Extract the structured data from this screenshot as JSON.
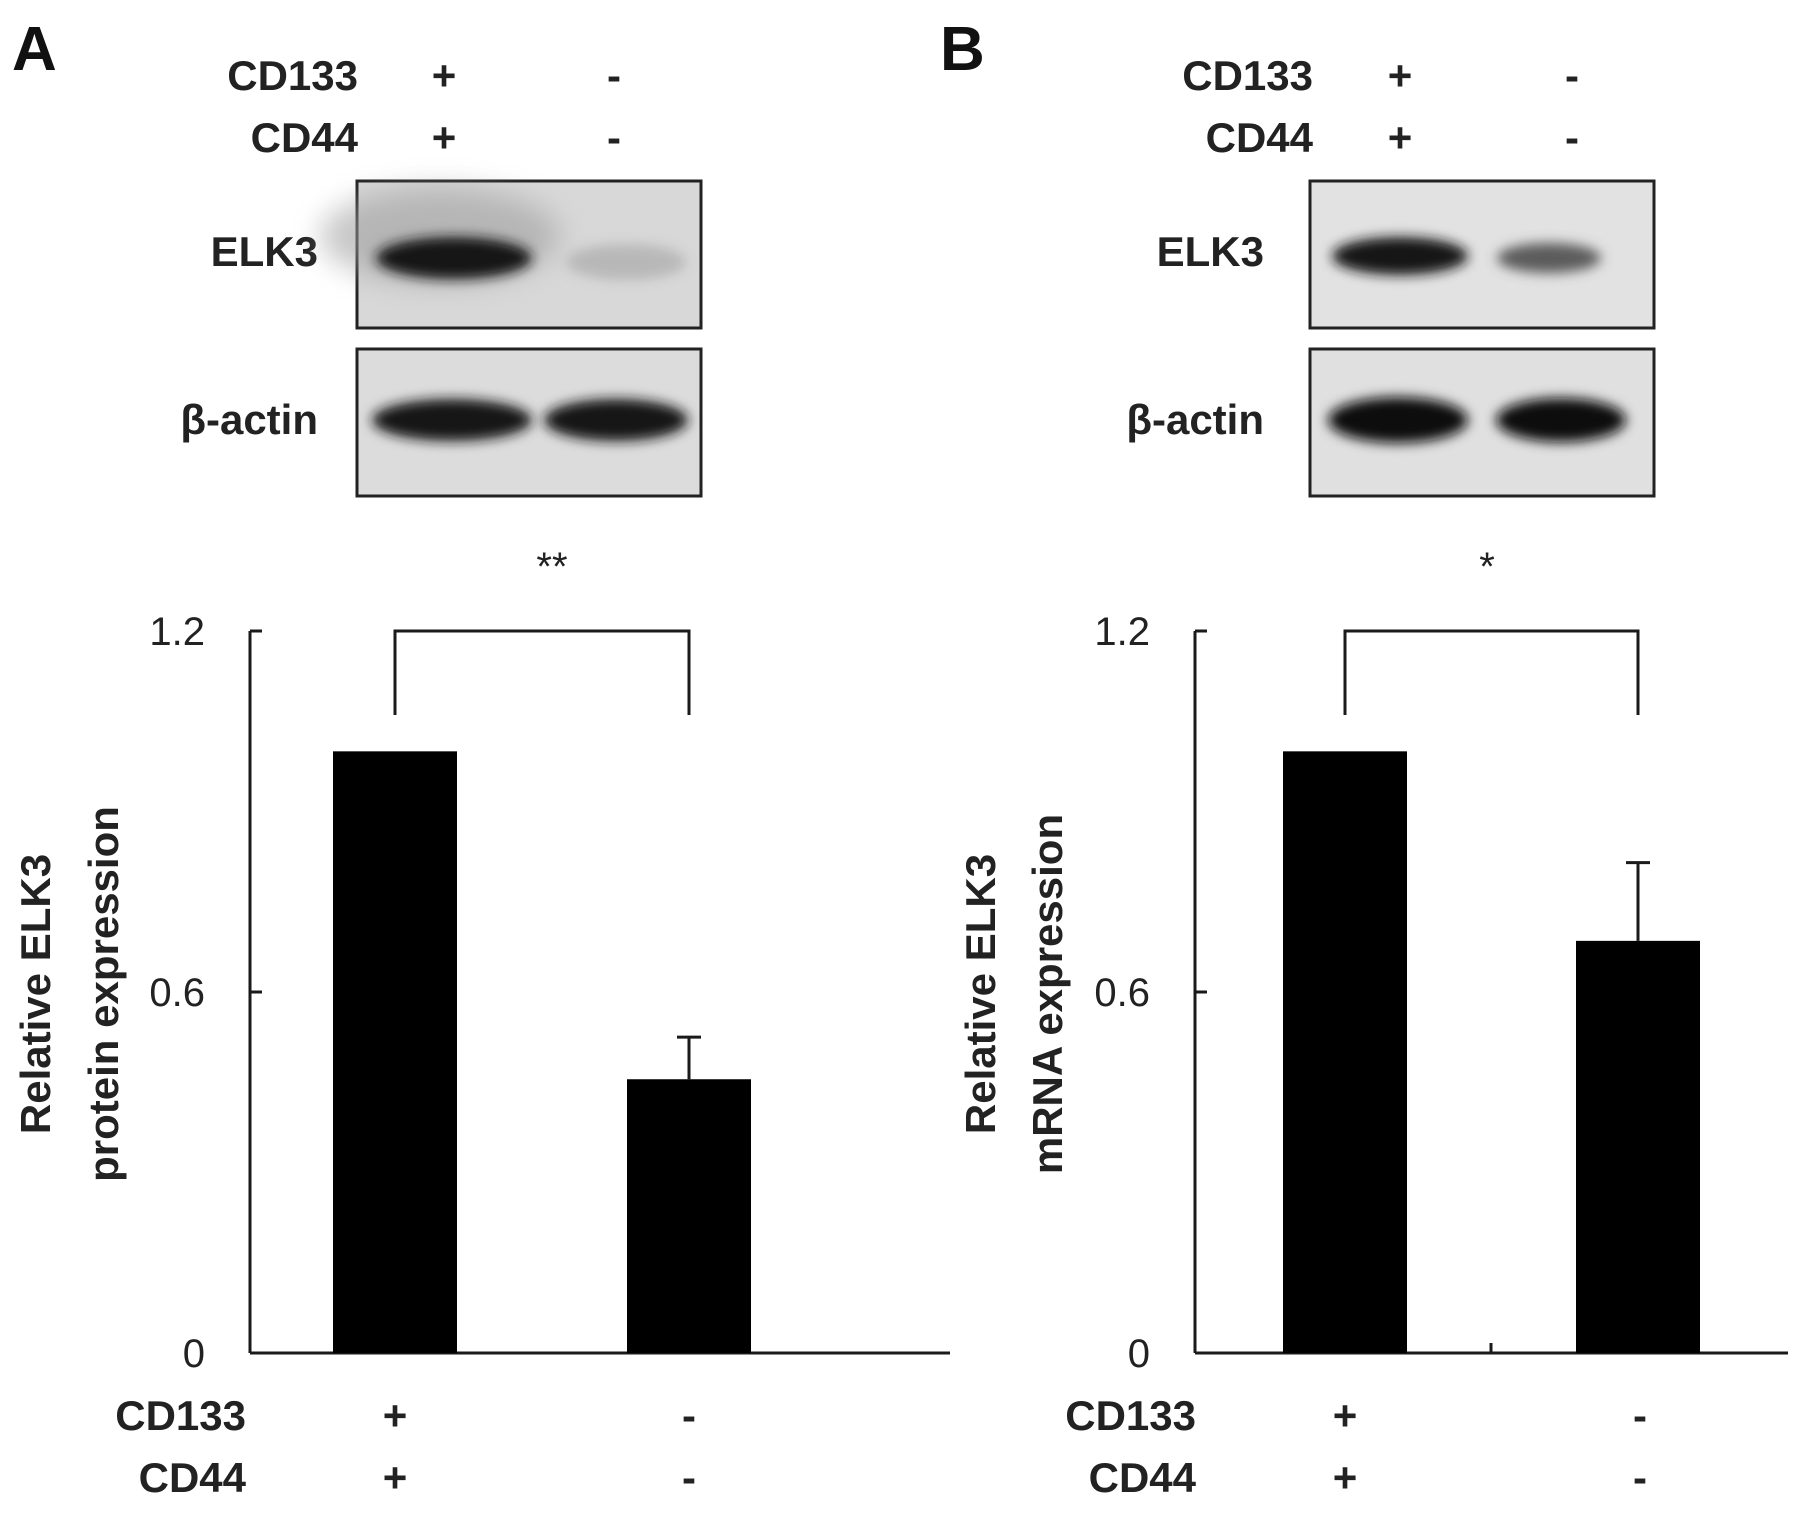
{
  "panels": [
    {
      "letter": "A",
      "blot": {
        "header_rows": [
          {
            "label": "CD133",
            "values": [
              "+",
              "-"
            ]
          },
          {
            "label": "CD44",
            "values": [
              "+",
              "-"
            ]
          }
        ],
        "rows": [
          {
            "label": "ELK3",
            "band_intensity": [
              1.0,
              0.18
            ]
          },
          {
            "label": "β-actin",
            "band_intensity": [
              1.0,
              1.0
            ]
          }
        ]
      },
      "significance": "**"
    },
    {
      "letter": "B",
      "blot": {
        "header_rows": [
          {
            "label": "CD133",
            "values": [
              "+",
              "-"
            ]
          },
          {
            "label": "CD44",
            "values": [
              "+",
              "-"
            ]
          }
        ],
        "rows": [
          {
            "label": "ELK3",
            "band_intensity": [
              1.0,
              0.55
            ]
          },
          {
            "label": "β-actin",
            "band_intensity": [
              1.0,
              1.0
            ]
          }
        ]
      },
      "significance": "*"
    }
  ],
  "chart_data": [
    {
      "type": "bar",
      "ylabel_lines": [
        "Relative ELK3",
        "protein expression"
      ],
      "ylim": [
        0,
        1.2
      ],
      "yticks": [
        "0",
        "0.6",
        "1.2"
      ],
      "group_rows": [
        {
          "label": "CD133",
          "values": [
            "+",
            "-"
          ]
        },
        {
          "label": "CD44",
          "values": [
            "+",
            "-"
          ]
        }
      ],
      "values": [
        1.0,
        0.455
      ],
      "errors": [
        0,
        0.07
      ],
      "significance": {
        "pair": [
          0,
          1
        ],
        "label": "**"
      }
    },
    {
      "type": "bar",
      "ylabel_lines": [
        "Relative ELK3",
        "mRNA  expression"
      ],
      "ylim": [
        0,
        1.2
      ],
      "yticks": [
        "0",
        "0.6",
        "1.2"
      ],
      "group_rows": [
        {
          "label": "CD133",
          "values": [
            "+",
            "-"
          ]
        },
        {
          "label": "CD44",
          "values": [
            "+",
            "-"
          ]
        }
      ],
      "values": [
        1.0,
        0.685
      ],
      "errors": [
        0,
        0.13
      ],
      "significance": {
        "pair": [
          0,
          1
        ],
        "label": "*"
      }
    }
  ]
}
